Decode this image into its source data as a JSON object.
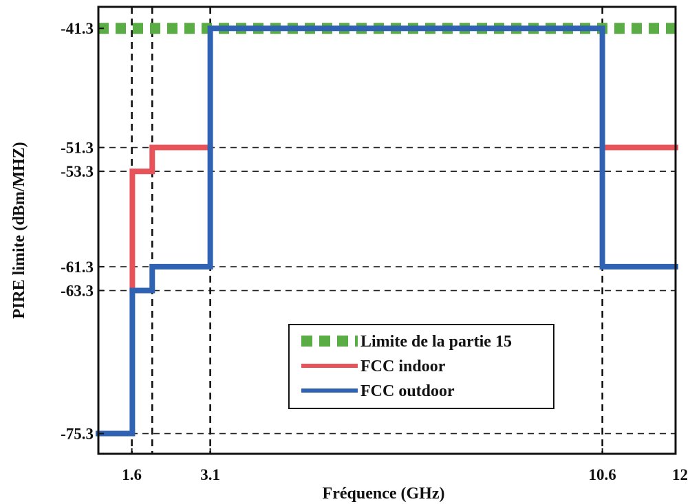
{
  "chart_data": {
    "type": "line",
    "title": "",
    "xlabel": "Fréquence (GHz)",
    "ylabel": "PIRE limite (dBm/MHZ)",
    "xlim": [
      0.96,
      12
    ],
    "ylim": [
      -77.0,
      -39.5
    ],
    "x_ticks": [
      {
        "value": 1.6,
        "label": "1.6"
      },
      {
        "value": 3.1,
        "label": "3.1"
      },
      {
        "value": 10.6,
        "label": "10.6"
      },
      {
        "value": 12,
        "label": "12"
      }
    ],
    "y_ticks": [
      {
        "value": -41.3,
        "label": "-41.3"
      },
      {
        "value": -51.3,
        "label": "-51.3"
      },
      {
        "value": -53.3,
        "label": "-53.3"
      },
      {
        "value": -61.3,
        "label": "-61.3"
      },
      {
        "value": -63.3,
        "label": "-63.3"
      },
      {
        "value": -75.3,
        "label": "-75.3"
      }
    ],
    "reference_vertical_lines": [
      1.6,
      1.99,
      3.1,
      10.6
    ],
    "reference_horizontal_lines": [
      -51.3,
      -53.3,
      -61.3,
      -63.3,
      -75.3
    ],
    "series": [
      {
        "name": "Limite de la partie 15",
        "color": "#5aac44",
        "style": "dotted-squares",
        "points": [
          [
            0.96,
            -41.3
          ],
          [
            12,
            -41.3
          ]
        ]
      },
      {
        "name": "FCC indoor",
        "color": "#e8535a",
        "style": "solid",
        "points": [
          [
            1.61,
            -63.3
          ],
          [
            1.61,
            -53.3
          ],
          [
            1.99,
            -53.3
          ],
          [
            1.99,
            -51.3
          ],
          [
            3.1,
            -51.3
          ]
        ]
      },
      {
        "name": "FCC indoor",
        "color": "#e8535a",
        "style": "solid",
        "points": [
          [
            10.6,
            -51.3
          ],
          [
            12,
            -51.3
          ]
        ]
      },
      {
        "name": "FCC outdoor",
        "color": "#2f62b3",
        "style": "solid",
        "points": [
          [
            0.96,
            -75.3
          ],
          [
            1.61,
            -75.3
          ],
          [
            1.61,
            -63.3
          ],
          [
            1.99,
            -63.3
          ],
          [
            1.99,
            -61.3
          ],
          [
            3.1,
            -61.3
          ],
          [
            3.1,
            -41.3
          ],
          [
            10.6,
            -41.3
          ],
          [
            10.6,
            -61.3
          ],
          [
            12,
            -61.3
          ]
        ]
      }
    ],
    "legend": {
      "position": "center-bottom",
      "entries": [
        {
          "label": "Limite de la partie 15",
          "color": "#5aac44",
          "style": "dotted-squares"
        },
        {
          "label": "FCC indoor",
          "color": "#e8535a",
          "style": "solid"
        },
        {
          "label": "FCC outdoor",
          "color": "#2f62b3",
          "style": "solid"
        }
      ]
    },
    "grid": false
  }
}
